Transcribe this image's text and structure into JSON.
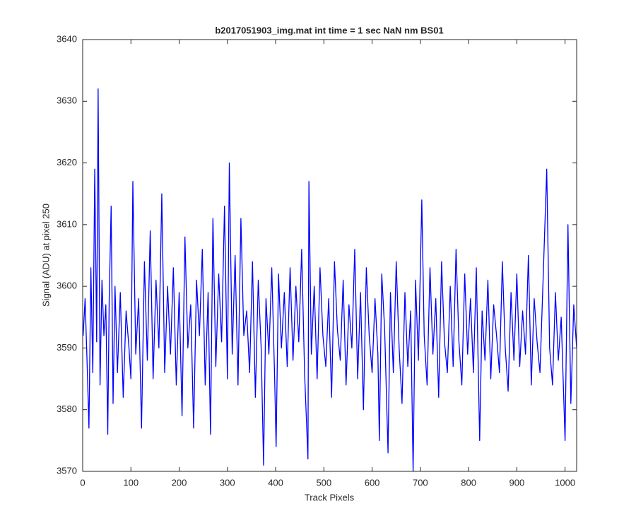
{
  "chart_data": {
    "type": "line",
    "title": "b2017051903_img.mat int time = 1 sec  NaN nm BS01",
    "x_label": "Track Pixels",
    "y_label": "Signal (ADU) at pixel 250",
    "x": [
      1,
      5,
      9,
      13,
      17,
      21,
      25,
      29,
      32,
      36,
      40,
      44,
      48,
      52,
      55,
      59,
      63,
      67,
      72,
      78,
      84,
      90,
      96,
      100,
      104,
      110,
      116,
      122,
      128,
      134,
      140,
      146,
      152,
      158,
      164,
      170,
      176,
      182,
      188,
      194,
      200,
      206,
      212,
      218,
      224,
      230,
      236,
      242,
      248,
      254,
      260,
      265,
      270,
      276,
      282,
      288,
      294,
      300,
      304,
      310,
      316,
      322,
      328,
      334,
      340,
      346,
      352,
      358,
      364,
      370,
      375,
      380,
      386,
      392,
      398,
      401,
      406,
      412,
      418,
      424,
      430,
      436,
      442,
      448,
      454,
      460,
      467,
      469,
      474,
      480,
      486,
      492,
      498,
      504,
      510,
      516,
      522,
      528,
      534,
      540,
      546,
      552,
      558,
      564,
      570,
      576,
      582,
      588,
      594,
      600,
      606,
      612,
      615,
      620,
      626,
      633,
      638,
      644,
      650,
      656,
      662,
      668,
      674,
      680,
      685,
      690,
      696,
      703,
      708,
      714,
      720,
      726,
      732,
      738,
      744,
      750,
      756,
      762,
      768,
      774,
      780,
      786,
      792,
      798,
      804,
      810,
      816,
      823,
      828,
      834,
      840,
      846,
      852,
      858,
      864,
      870,
      876,
      882,
      888,
      894,
      900,
      906,
      912,
      918,
      924,
      930,
      936,
      942,
      948,
      954,
      962,
      968,
      974,
      980,
      986,
      992,
      1000,
      1006,
      1012,
      1018,
      1024
    ],
    "series": [
      {
        "color": "#0000ff",
        "values": [
          3592,
          3598,
          3588,
          3577,
          3603,
          3586,
          3619,
          3591,
          3632,
          3584,
          3601,
          3592,
          3597,
          3576,
          3598,
          3613,
          3581,
          3600,
          3586,
          3599,
          3582,
          3596,
          3590,
          3585,
          3617,
          3589,
          3598,
          3577,
          3604,
          3588,
          3609,
          3585,
          3601,
          3590,
          3615,
          3586,
          3600,
          3589,
          3603,
          3584,
          3599,
          3579,
          3608,
          3590,
          3597,
          3577,
          3601,
          3592,
          3606,
          3584,
          3599,
          3576,
          3611,
          3587,
          3602,
          3591,
          3613,
          3585,
          3620,
          3589,
          3605,
          3584,
          3611,
          3592,
          3596,
          3586,
          3604,
          3582,
          3601,
          3590,
          3571,
          3598,
          3589,
          3603,
          3585,
          3574,
          3602,
          3590,
          3599,
          3587,
          3603,
          3588,
          3600,
          3591,
          3606,
          3586,
          3572,
          3617,
          3589,
          3600,
          3585,
          3603,
          3592,
          3587,
          3598,
          3582,
          3604,
          3593,
          3588,
          3601,
          3584,
          3597,
          3590,
          3606,
          3585,
          3599,
          3580,
          3603,
          3592,
          3586,
          3598,
          3589,
          3575,
          3602,
          3593,
          3573,
          3599,
          3586,
          3604,
          3590,
          3581,
          3599,
          3587,
          3596,
          3570,
          3601,
          3588,
          3614,
          3592,
          3584,
          3603,
          3589,
          3598,
          3582,
          3604,
          3591,
          3586,
          3600,
          3587,
          3606,
          3591,
          3584,
          3602,
          3589,
          3598,
          3586,
          3603,
          3575,
          3596,
          3588,
          3601,
          3585,
          3597,
          3592,
          3586,
          3604,
          3590,
          3583,
          3599,
          3588,
          3602,
          3587,
          3596,
          3589,
          3605,
          3584,
          3598,
          3591,
          3586,
          3600,
          3619,
          3590,
          3584,
          3599,
          3588,
          3595,
          3575,
          3610,
          3581,
          3597,
          3590
        ]
      }
    ],
    "xlim": [
      0,
      1024
    ],
    "xticks": [
      0,
      100,
      200,
      300,
      400,
      500,
      600,
      700,
      800,
      900,
      1000
    ],
    "ylim": [
      3570,
      3640
    ],
    "yticks": [
      3570,
      3580,
      3590,
      3600,
      3610,
      3620,
      3630,
      3640
    ]
  }
}
